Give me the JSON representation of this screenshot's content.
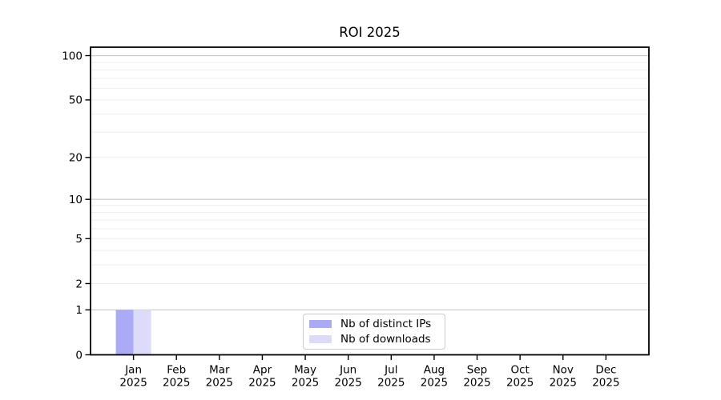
{
  "chart_data": {
    "type": "bar",
    "title": "ROI 2025",
    "categories": [
      [
        "Jan",
        "2025"
      ],
      [
        "Feb",
        "2025"
      ],
      [
        "Mar",
        "2025"
      ],
      [
        "Apr",
        "2025"
      ],
      [
        "May",
        "2025"
      ],
      [
        "Jun",
        "2025"
      ],
      [
        "Jul",
        "2025"
      ],
      [
        "Aug",
        "2025"
      ],
      [
        "Sep",
        "2025"
      ],
      [
        "Oct",
        "2025"
      ],
      [
        "Nov",
        "2025"
      ],
      [
        "Dec",
        "2025"
      ]
    ],
    "series": [
      {
        "name": "Nb of distinct IPs",
        "color": "#aaaaf6",
        "values": [
          1,
          0,
          0,
          0,
          0,
          0,
          0,
          0,
          0,
          0,
          0,
          0
        ]
      },
      {
        "name": "Nb of downloads",
        "color": "#dcdcfa",
        "values": [
          1,
          0,
          0,
          0,
          0,
          0,
          0,
          0,
          0,
          0,
          0,
          0
        ]
      }
    ],
    "y_axis": {
      "scale": "symlog",
      "ylim": [
        0,
        114
      ],
      "ticks": [
        0,
        1,
        2,
        5,
        10,
        20,
        50,
        100
      ],
      "major_gridlines": [
        1,
        10,
        100
      ],
      "minor_gridlines": [
        2,
        3,
        4,
        5,
        6,
        7,
        8,
        9,
        20,
        30,
        40,
        50,
        60,
        70,
        80,
        90
      ]
    },
    "x_axis": {
      "label": "",
      "grid": false
    },
    "legend": {
      "position": "bottom-center"
    },
    "colors": {
      "background": "#ffffff",
      "axis": "#000000",
      "text": "#000000",
      "major_grid": "#c9c9c9",
      "minor_grid": "#ededed",
      "legend_border": "#cccccc"
    }
  }
}
